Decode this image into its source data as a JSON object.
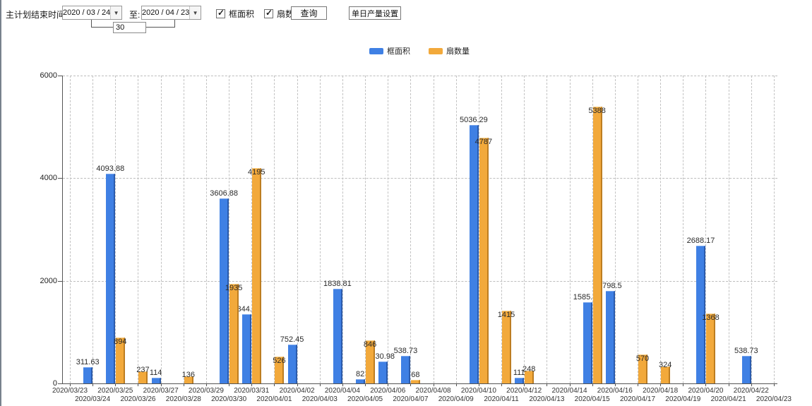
{
  "toolbar": {
    "plan_end_label": "主计划结束时间:",
    "date_from": "2020 / 03 / 24",
    "to_label": "至:",
    "date_to": "2020 / 04 / 23",
    "interval_value": "30",
    "checkbox_frame_area": {
      "label": "框面积",
      "checked": true
    },
    "checkbox_fan_count": {
      "label": "扇数量",
      "checked": true
    },
    "query_button": "查询",
    "daily_output_button": "单日产量设置"
  },
  "legend": [
    {
      "label": "框面积",
      "color": "#3f80e4"
    },
    {
      "label": "扇数量",
      "color": "#f2a93b"
    }
  ],
  "chart_data": {
    "type": "bar",
    "title": "",
    "xlabel": "",
    "ylabel": "",
    "ylim": [
      0,
      6000
    ],
    "yticks": [
      0,
      2000,
      4000,
      6000
    ],
    "grid": true,
    "legend_position": "top",
    "categories": [
      "2020/03/23",
      "2020/03/24",
      "2020/03/25",
      "2020/03/26",
      "2020/03/27",
      "2020/03/28",
      "2020/03/29",
      "2020/03/30",
      "2020/03/31",
      "2020/04/01",
      "2020/04/02",
      "2020/04/03",
      "2020/04/04",
      "2020/04/05",
      "2020/04/06",
      "2020/04/07",
      "2020/04/08",
      "2020/04/09",
      "2020/04/10",
      "2020/04/11",
      "2020/04/12",
      "2020/04/13",
      "2020/04/14",
      "2020/04/15",
      "2020/04/16",
      "2020/04/17",
      "2020/04/18",
      "2020/04/19",
      "2020/04/20",
      "2020/04/21",
      "2020/04/22",
      "2020/04/23"
    ],
    "series": [
      {
        "name": "框面积",
        "color": "#3f80e4",
        "values": [
          0,
          311.63,
          4093.88,
          0,
          114,
          0,
          0,
          3606.88,
          1344.95,
          0,
          752.45,
          0,
          1838.81,
          82,
          430.98,
          538.73,
          0,
          0,
          5036.29,
          0,
          111,
          0,
          0,
          1585.96,
          1798.5,
          0,
          0,
          0,
          2688.17,
          0,
          538.73,
          0
        ]
      },
      {
        "name": "扇数量",
        "color": "#f2a93b",
        "values": [
          0,
          0,
          894,
          237,
          0,
          136,
          0,
          1935,
          4195,
          526,
          0,
          0,
          0,
          846,
          0,
          68,
          0,
          0,
          4787,
          1415,
          248,
          0,
          0,
          5388,
          0,
          570,
          324,
          0,
          1368,
          0,
          0,
          0
        ]
      }
    ],
    "notes": "zero values are not drawn; value labels shown at bar tops"
  }
}
